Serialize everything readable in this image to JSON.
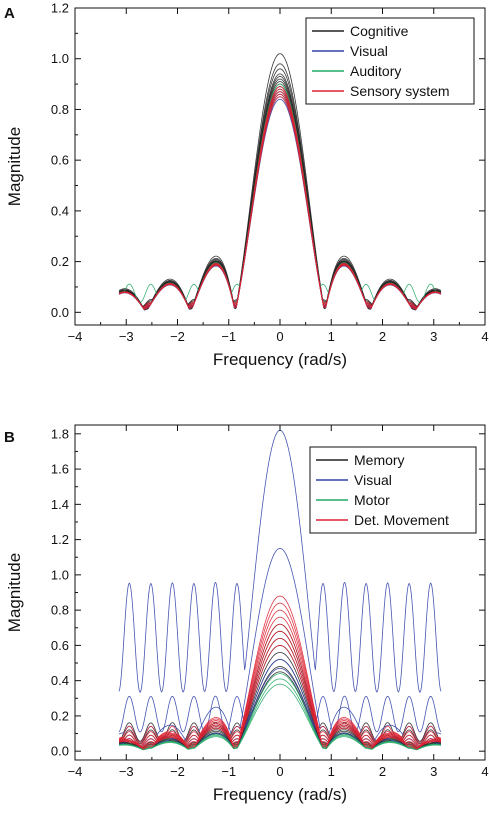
{
  "chart_data": [
    {
      "panel_label": "A",
      "type": "line",
      "xlabel": "Frequency (rad/s)",
      "ylabel": "Magnitude",
      "xlim": [
        -4,
        4
      ],
      "ylim": [
        -0.05,
        1.2
      ],
      "xticks": [
        -4,
        -3,
        -2,
        -1,
        0,
        1,
        2,
        3,
        4
      ],
      "yticks": [
        0.0,
        0.2,
        0.4,
        0.6,
        0.8,
        1.0,
        1.2
      ],
      "ytick_format": 1,
      "grid": false,
      "legend_position": "top-right",
      "x_range_of_curves": [
        -3.14,
        3.14
      ],
      "series": [
        {
          "name": "Cognitive",
          "color": "#222222",
          "peaks": [
            1.02,
            0.98,
            0.96,
            0.94,
            0.93,
            0.92,
            0.91,
            0.9,
            0.89,
            0.88,
            0.87,
            0.86
          ],
          "baselines": [
            0.05,
            0.045,
            0.04,
            0.035,
            0.03,
            0.028,
            0.025,
            0.022,
            0.02,
            0.018,
            0.016,
            0.015
          ]
        },
        {
          "name": "Visual",
          "color": "#3344aa",
          "peaks": [
            0.87,
            0.85,
            0.84
          ],
          "baselines": [
            0.03,
            0.025,
            0.02
          ]
        },
        {
          "name": "Auditory",
          "color": "#22aa66",
          "peaks": [
            0.9
          ],
          "baselines": [
            0.11
          ]
        },
        {
          "name": "Sensory system",
          "color": "#dd2233",
          "peaks": [
            0.89,
            0.88,
            0.87,
            0.86,
            0.85
          ],
          "baselines": [
            0.04,
            0.035,
            0.03,
            0.025,
            0.02
          ]
        }
      ]
    },
    {
      "panel_label": "B",
      "type": "line",
      "xlabel": "Frequency (rad/s)",
      "ylabel": "Magnitude",
      "xlim": [
        -4,
        4
      ],
      "ylim": [
        -0.05,
        1.85
      ],
      "xticks": [
        -4,
        -3,
        -2,
        -1,
        0,
        1,
        2,
        3,
        4
      ],
      "yticks": [
        0.0,
        0.2,
        0.4,
        0.6,
        0.8,
        1.0,
        1.2,
        1.4,
        1.6,
        1.8
      ],
      "ytick_format": 1,
      "grid": false,
      "legend_position": "top-right",
      "x_range_of_curves": [
        -3.14,
        3.14
      ],
      "series": [
        {
          "name": "Memory",
          "color": "#222222",
          "peaks": [
            0.72,
            0.68,
            0.64,
            0.6,
            0.56,
            0.52,
            0.48,
            0.45
          ],
          "baselines": [
            0.16,
            0.12,
            0.09,
            0.07,
            0.05,
            0.04,
            0.03,
            0.02
          ]
        },
        {
          "name": "Visual",
          "color": "#3344aa",
          "peaks": [
            1.82,
            1.15,
            0.52,
            0.47
          ],
          "baselines": [
            0.95,
            0.14,
            0.31,
            0.07
          ]
        },
        {
          "name": "Motor",
          "color": "#22aa66",
          "peaks": [
            0.44,
            0.41,
            0.38
          ],
          "baselines": [
            0.03,
            0.02,
            0.015
          ]
        },
        {
          "name": "Det. Movement",
          "color": "#dd2233",
          "peaks": [
            0.88,
            0.84,
            0.8,
            0.76,
            0.72,
            0.68,
            0.64,
            0.6
          ],
          "baselines": [
            0.14,
            0.11,
            0.09,
            0.07,
            0.055,
            0.045,
            0.035,
            0.025
          ]
        }
      ]
    }
  ]
}
